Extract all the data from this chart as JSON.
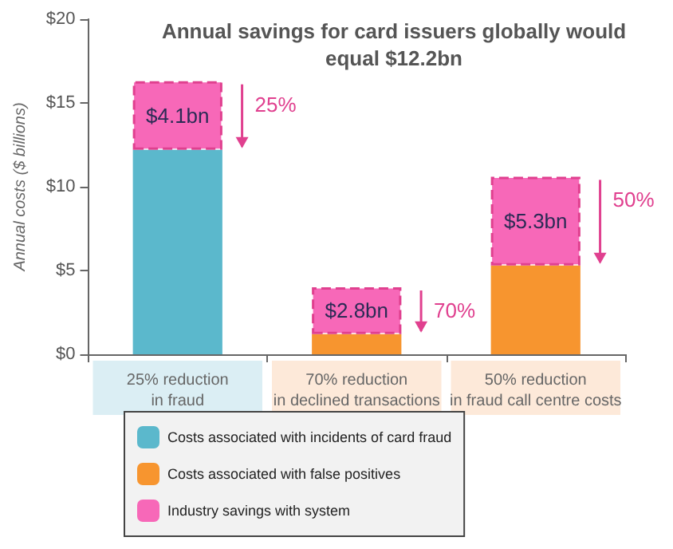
{
  "chart_data": {
    "type": "bar",
    "title": "Annual savings for card issuers globally would\nequal $12.2bn",
    "ylabel": "Annual costs ($ billions)",
    "categories": [
      "25% reduction\nin fraud",
      "70% reduction\nin declined transactions",
      "50% reduction\nin fraud call centre costs"
    ],
    "stacked": true,
    "series": [
      {
        "name": "Costs associated with incidents of card fraud",
        "color": "#5bb8cc",
        "values": [
          12.2,
          null,
          null
        ]
      },
      {
        "name": "Costs associated with false positives",
        "color": "#f7952f",
        "values": [
          null,
          1.2,
          5.3
        ]
      },
      {
        "name": "Industry savings with system",
        "color": "#f768b8",
        "values": [
          4.1,
          2.8,
          5.3
        ],
        "value_labels": [
          "$4.1bn",
          "$2.8bn",
          "$5.3bn"
        ],
        "line_style": "dashed"
      }
    ],
    "annotations": [
      "25%",
      "70%",
      "50%"
    ],
    "ylim": [
      0,
      20
    ],
    "yticks": [
      {
        "value": 0,
        "label": "$0"
      },
      {
        "value": 5,
        "label": "$5"
      },
      {
        "value": 10,
        "label": "$10"
      },
      {
        "value": 15,
        "label": "$15"
      },
      {
        "value": 20,
        "label": "$20"
      }
    ],
    "grid": false,
    "legend": "bottom"
  }
}
